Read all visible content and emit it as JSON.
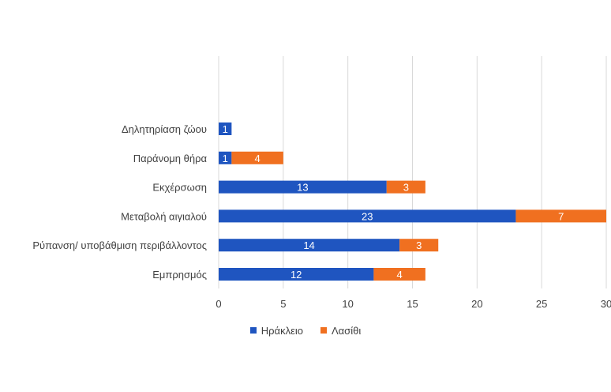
{
  "chart_data": {
    "type": "bar",
    "orientation": "horizontal",
    "stacked": true,
    "title": "",
    "xlabel": "",
    "ylabel": "",
    "categories": [
      "Εμπρησμός",
      "Ρύπανση/ υποβάθμιση περιβάλλοντος",
      "Μεταβολή αιγιαλού",
      "Εκχέρσωση",
      "Παράνομη θήρα",
      "Δηλητηρίαση ζώου"
    ],
    "series": [
      {
        "name": "Ηράκλειο",
        "color": "#1f55c0",
        "values": [
          12,
          14,
          23,
          13,
          1,
          1
        ]
      },
      {
        "name": "Λασίθι",
        "color": "#f07020",
        "values": [
          4,
          3,
          7,
          3,
          4,
          null
        ]
      }
    ],
    "xlim": [
      0,
      30
    ],
    "xticks": [
      "0",
      "5",
      "10",
      "15",
      "20",
      "25",
      "30"
    ],
    "grid": "vertical",
    "legend": "bottom"
  }
}
